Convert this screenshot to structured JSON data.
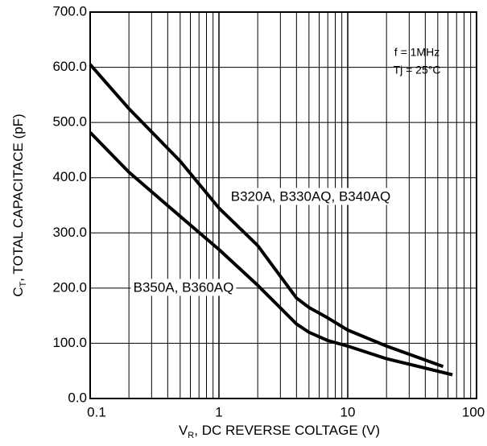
{
  "chart_data": {
    "type": "line",
    "x_label": {
      "main": "V",
      "sub": "R",
      "rest": ", DC REVERSE COLTAGE (V)"
    },
    "y_label": {
      "main": "C",
      "sub": "T",
      "rest": ", TOTAL CAPACITACE (pF)"
    },
    "xscale": "log",
    "xlim": [
      0.1,
      100
    ],
    "xticks": [
      0.1,
      1,
      10,
      100
    ],
    "xminorticks": [
      0.2,
      0.3,
      0.4,
      0.5,
      0.6,
      0.7,
      0.8,
      0.9,
      2,
      3,
      4,
      5,
      6,
      7,
      8,
      9,
      20,
      30,
      40,
      50,
      60,
      70,
      80,
      90
    ],
    "ylim": [
      0,
      700
    ],
    "yticks": [
      {
        "value": 0,
        "label": "0.0"
      },
      {
        "value": 100,
        "label": "100.0"
      },
      {
        "value": 200,
        "label": "200.0"
      },
      {
        "value": 300,
        "label": "300.0"
      },
      {
        "value": 400,
        "label": "400.0"
      },
      {
        "value": 500,
        "label": "500.0"
      },
      {
        "value": 600,
        "label": "600.0"
      },
      {
        "value": 700,
        "label": "700.0"
      }
    ],
    "grid": true,
    "annotations": [
      "f = 1MHz",
      "Tj = 25°C"
    ],
    "series": [
      {
        "name": "B320A, B330AQ, B340AQ",
        "color": "#000000",
        "x": [
          0.1,
          0.2,
          0.5,
          1,
          2,
          4,
          5,
          7,
          10,
          20,
          55
        ],
        "values": [
          605,
          525,
          430,
          345,
          277,
          182,
          165,
          146,
          124,
          95,
          58
        ]
      },
      {
        "name": "B350A, B360AQ",
        "color": "#000000",
        "x": [
          0.1,
          0.2,
          0.5,
          1,
          2,
          4,
          5,
          7,
          10,
          20,
          65
        ],
        "values": [
          482,
          410,
          330,
          270,
          205,
          135,
          120,
          105,
          95,
          72,
          43
        ]
      }
    ]
  }
}
